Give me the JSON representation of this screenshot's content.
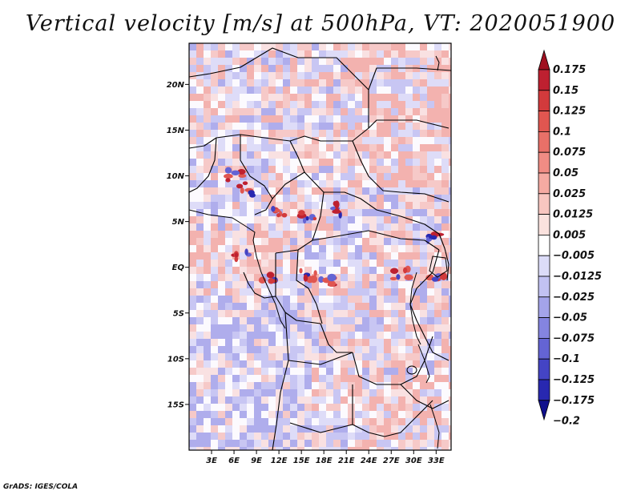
{
  "title": "Vertical velocity [m/s] at 500hPa, VT: 2020051900",
  "credit": "GrADS: IGES/COLA",
  "map": {
    "lat_labels": [
      "20N",
      "15N",
      "10N",
      "5N",
      "EQ",
      "5S",
      "10S",
      "15S"
    ],
    "lat_values": [
      20,
      15,
      10,
      5,
      0,
      -5,
      -10,
      -15
    ],
    "lon_labels": [
      "3E",
      "6E",
      "9E",
      "12E",
      "15E",
      "18E",
      "21E",
      "24E",
      "27E",
      "30E",
      "33E"
    ],
    "lon_values": [
      3,
      6,
      9,
      12,
      15,
      18,
      21,
      24,
      27,
      30,
      33
    ],
    "lon_range": [
      0,
      35
    ],
    "lat_range": [
      -20,
      24.5
    ]
  },
  "colorbar": {
    "levels": [
      "0.175",
      "0.15",
      "0.125",
      "0.1",
      "0.075",
      "0.05",
      "0.025",
      "0.0125",
      "0.005",
      "−0.005",
      "−0.0125",
      "−0.025",
      "−0.05",
      "−0.075",
      "−0.1",
      "−0.125",
      "−0.175",
      "−0.2"
    ],
    "colors": [
      "#a01020",
      "#be2030",
      "#d23a3c",
      "#e05650",
      "#e87068",
      "#f08c84",
      "#f5aaa2",
      "#f8c6c0",
      "#fbe2de",
      "#ffffff",
      "#dcdcf8",
      "#c2c2f2",
      "#a4a4ea",
      "#8484e0",
      "#6464d4",
      "#4444c4",
      "#2828b0",
      "#10108c"
    ]
  }
}
